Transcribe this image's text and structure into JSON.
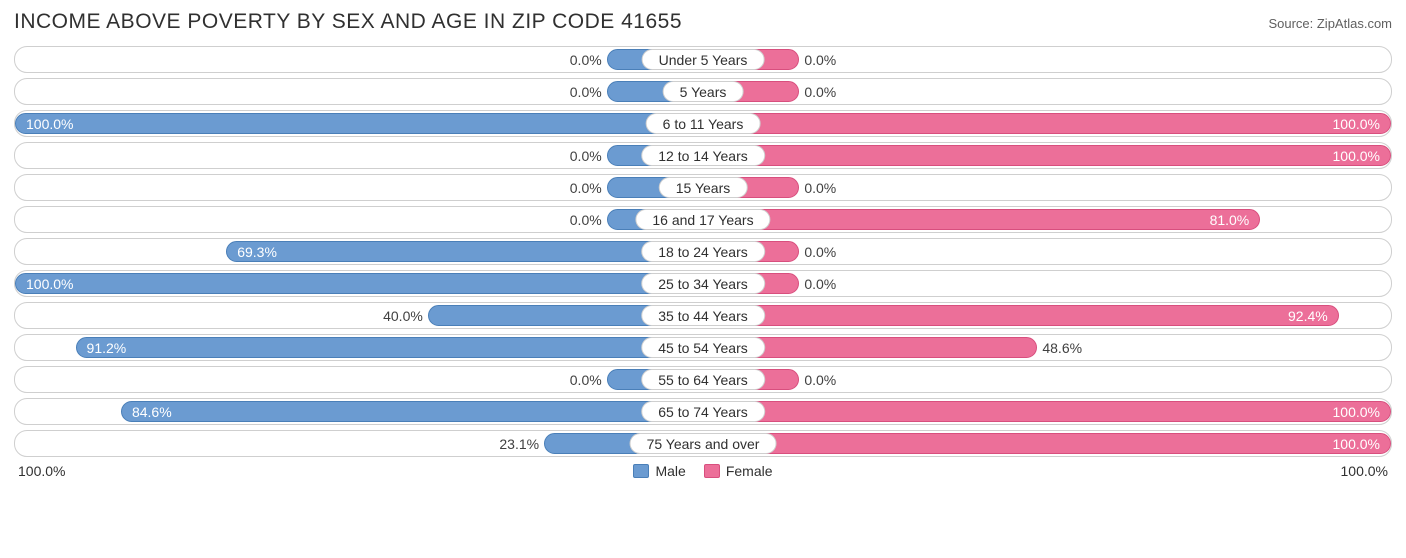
{
  "title": "INCOME ABOVE POVERTY BY SEX AND AGE IN ZIP CODE 41655",
  "source": "Source: ZipAtlas.com",
  "axis": {
    "left": "100.0%",
    "right": "100.0%",
    "max": 100.0
  },
  "legend": {
    "male": {
      "label": "Male",
      "color": "#6b9bd1",
      "border": "#4a7fb8"
    },
    "female": {
      "label": "Female",
      "color": "#ec6f99",
      "border": "#d84f7e"
    }
  },
  "min_bar_pct": 14,
  "colors": {
    "row_border": "#cfcfcf",
    "text": "#303030",
    "muted": "#606060",
    "bg": "#ffffff"
  },
  "rows": [
    {
      "label": "Under 5 Years",
      "male": 0.0,
      "female": 0.0
    },
    {
      "label": "5 Years",
      "male": 0.0,
      "female": 0.0
    },
    {
      "label": "6 to 11 Years",
      "male": 100.0,
      "female": 100.0
    },
    {
      "label": "12 to 14 Years",
      "male": 0.0,
      "female": 100.0
    },
    {
      "label": "15 Years",
      "male": 0.0,
      "female": 0.0
    },
    {
      "label": "16 and 17 Years",
      "male": 0.0,
      "female": 81.0
    },
    {
      "label": "18 to 24 Years",
      "male": 69.3,
      "female": 0.0
    },
    {
      "label": "25 to 34 Years",
      "male": 100.0,
      "female": 0.0
    },
    {
      "label": "35 to 44 Years",
      "male": 40.0,
      "female": 92.4
    },
    {
      "label": "45 to 54 Years",
      "male": 91.2,
      "female": 48.6
    },
    {
      "label": "55 to 64 Years",
      "male": 0.0,
      "female": 0.0
    },
    {
      "label": "65 to 74 Years",
      "male": 84.6,
      "female": 100.0
    },
    {
      "label": "75 Years and over",
      "male": 23.1,
      "female": 100.0
    }
  ]
}
